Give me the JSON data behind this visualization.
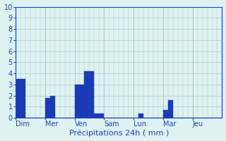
{
  "title": "",
  "xlabel": "Précipitations 24h ( mm )",
  "background_color": "#dff2f2",
  "grid_color": "#aacaca",
  "bar_color": "#1a3ab5",
  "bar_edge_color": "#2244cc",
  "ylim": [
    0,
    10
  ],
  "yticks": [
    0,
    1,
    2,
    3,
    4,
    5,
    6,
    7,
    8,
    9,
    10
  ],
  "day_labels": [
    "Dim",
    "Mer",
    "Ven",
    "Sam",
    "Lun",
    "Mar",
    "Jeu"
  ],
  "num_days": 7,
  "bars_per_day": 6,
  "bar_values": [
    3.5,
    3.5,
    0,
    0,
    0,
    0,
    1.8,
    2.0,
    0,
    0,
    0,
    0,
    3.0,
    3.0,
    4.2,
    4.2,
    0.4,
    0.4,
    0,
    0,
    0,
    0,
    0,
    0,
    0,
    0.35,
    0,
    0,
    0,
    0,
    0.7,
    1.6,
    0,
    0,
    0,
    0,
    0,
    0,
    0,
    0,
    0,
    0
  ],
  "axis_color": "#2244cc",
  "tick_color": "#2244cc",
  "label_color": "#2244cc",
  "xlabel_fontsize": 8,
  "ytick_fontsize": 7,
  "xtick_fontsize": 7
}
